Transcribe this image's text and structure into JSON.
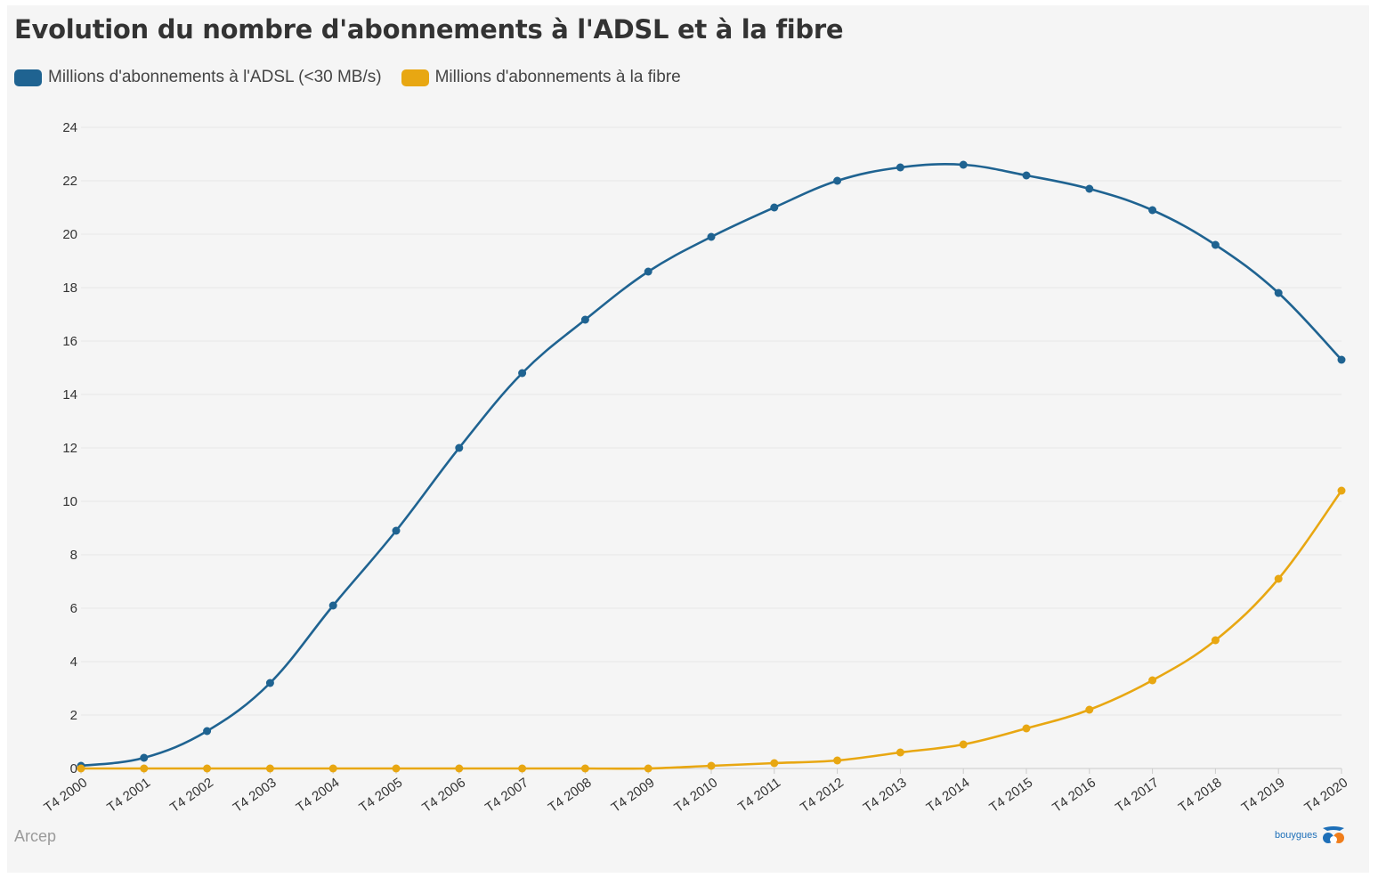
{
  "title": "Evolution du nombre d'abonnements à l'ADSL et à la fibre",
  "source": "Arcep",
  "logo_text": "bouygues",
  "colors": {
    "adsl": "#1f6391",
    "fibre": "#e8a712",
    "grid": "#e6e6e6",
    "axis_text": "#333333"
  },
  "chart_data": {
    "type": "line",
    "title": "Evolution du nombre d'abonnements à l'ADSL et à la fibre",
    "xlabel": "",
    "ylabel": "",
    "ylim": [
      0,
      24
    ],
    "yticks": [
      0,
      2,
      4,
      6,
      8,
      10,
      12,
      14,
      16,
      18,
      20,
      22,
      24
    ],
    "grid": true,
    "legend_position": "top-left",
    "categories": [
      "T4 2000",
      "T4 2001",
      "T4 2002",
      "T4 2003",
      "T4 2004",
      "T4 2005",
      "T4 2006",
      "T4 2007",
      "T4 2008",
      "T4 2009",
      "T4 2010",
      "T4 2011",
      "T4 2012",
      "T4 2013",
      "T4 2014",
      "T4 2015",
      "T4 2016",
      "T4 2017",
      "T4 2018",
      "T4 2019",
      "T4 2020"
    ],
    "series": [
      {
        "name": "Millions d'abonnements à l'ADSL (<30 MB/s)",
        "color": "#1f6391",
        "values": [
          0.1,
          0.4,
          1.4,
          3.2,
          6.1,
          8.9,
          12.0,
          14.8,
          16.8,
          18.6,
          19.9,
          21.0,
          22.0,
          22.5,
          22.6,
          22.2,
          21.7,
          20.9,
          19.6,
          17.8,
          15.3
        ]
      },
      {
        "name": "Millions d'abonnements à la fibre",
        "color": "#e8a712",
        "values": [
          0.0,
          0.0,
          0.0,
          0.0,
          0.0,
          0.0,
          0.0,
          0.0,
          0.0,
          0.0,
          0.1,
          0.2,
          0.3,
          0.6,
          0.9,
          1.5,
          2.2,
          3.3,
          4.8,
          7.1,
          10.4
        ]
      }
    ]
  }
}
